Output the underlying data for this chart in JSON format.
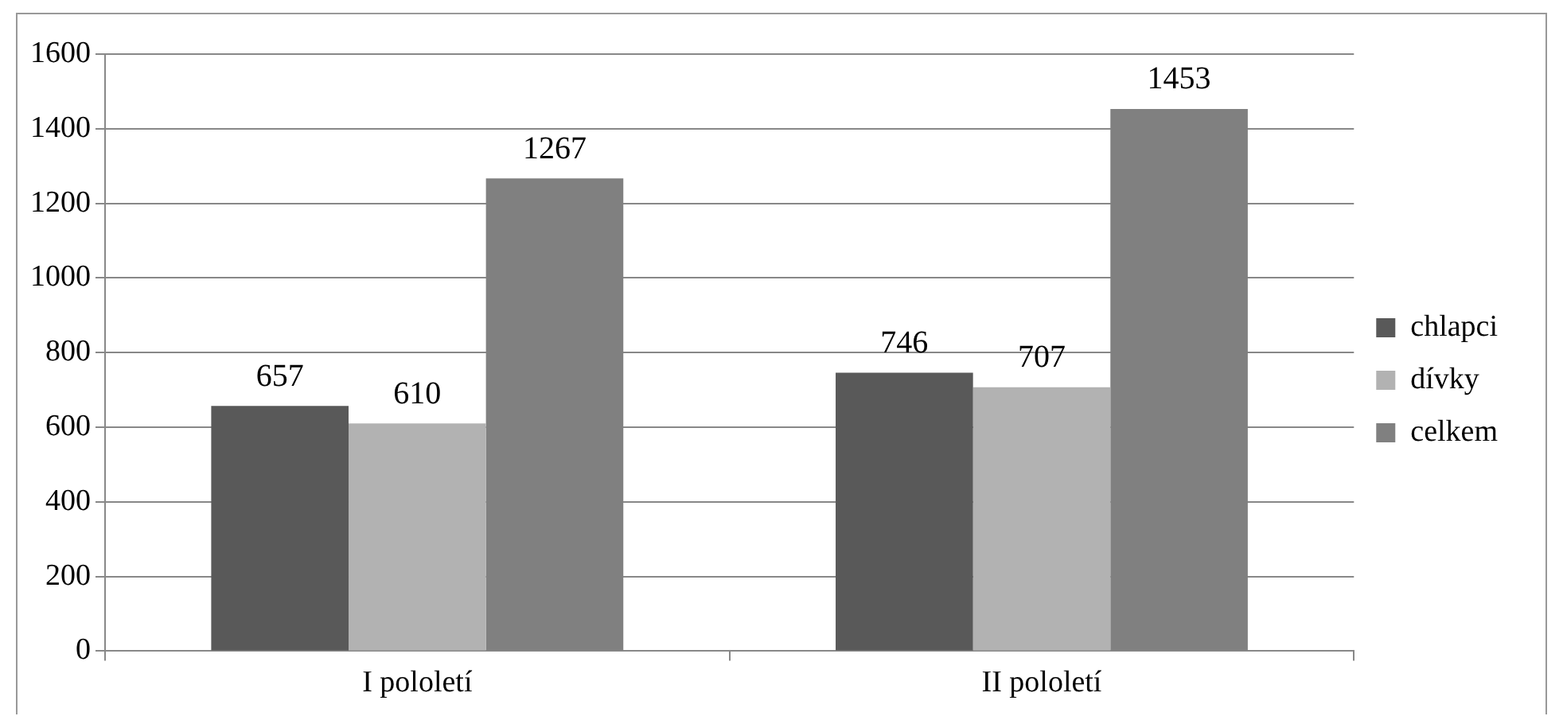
{
  "chart_data": {
    "type": "bar",
    "categories": [
      "I pololetí",
      "II pololetí"
    ],
    "series": [
      {
        "name": "chlapci",
        "color": "#595959",
        "values": [
          657,
          746
        ]
      },
      {
        "name": "dívky",
        "color": "#b2b2b2",
        "values": [
          610,
          707
        ]
      },
      {
        "name": "celkem",
        "color": "#808080",
        "values": [
          1267,
          1453
        ]
      }
    ],
    "ylim": [
      0,
      1600
    ],
    "yticks": [
      0,
      200,
      400,
      600,
      800,
      1000,
      1200,
      1400,
      1600
    ],
    "grid": "y",
    "legend": "right",
    "data_labels": true
  }
}
